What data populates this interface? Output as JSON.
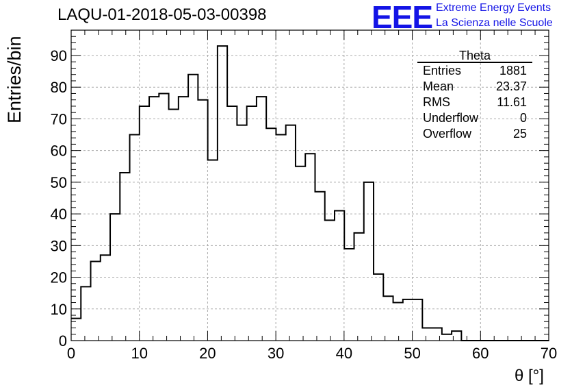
{
  "title": "LAQU-01-2018-05-03-00398",
  "logo": {
    "mark": "EEE",
    "line1": "Extreme Energy Events",
    "line2": "La Scienza nelle Scuole",
    "color": "#1414e6"
  },
  "stats_box": {
    "title": "Theta",
    "rows": [
      {
        "label": "Entries",
        "value": "1881"
      },
      {
        "label": "Mean",
        "value": "23.37"
      },
      {
        "label": "RMS",
        "value": "11.61"
      },
      {
        "label": "Underflow",
        "value": "0"
      },
      {
        "label": "Overflow",
        "value": "25"
      }
    ]
  },
  "chart_data": {
    "type": "histogram",
    "title": "LAQU-01-2018-05-03-00398",
    "xlabel": "θ [°]",
    "ylabel": "Entries/bin",
    "xlim": [
      0,
      70
    ],
    "ylim": [
      0,
      98
    ],
    "bin_width": 1.43,
    "bin_edges_start": 0,
    "x_ticks": [
      0,
      10,
      20,
      30,
      40,
      50,
      60,
      70
    ],
    "y_ticks": [
      0,
      10,
      20,
      30,
      40,
      50,
      60,
      70,
      80,
      90
    ],
    "grid": true,
    "values": [
      7,
      17,
      25,
      27,
      40,
      53,
      65,
      74,
      77,
      78,
      73,
      77,
      84,
      76,
      57,
      93,
      74,
      68,
      74,
      77,
      67,
      65,
      68,
      55,
      59,
      47,
      38,
      41,
      29,
      34,
      50,
      21,
      14,
      12,
      13,
      13,
      4,
      4,
      2,
      3,
      0,
      0,
      0,
      0,
      0,
      0,
      0,
      0,
      0
    ],
    "line_color": "#000000"
  }
}
